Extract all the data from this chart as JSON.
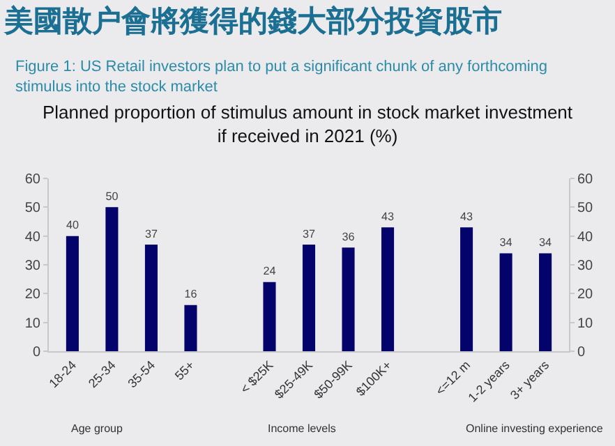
{
  "chart_data": {
    "type": "bar",
    "title": "Planned proportion of stimulus amount in stock market investment\nif received in 2021 (%)",
    "subtitle": "Figure 1: US Retail investors plan to put a significant chunk of any forthcoming stimulus into the stock market",
    "annotations": [
      "美國散户會將獲得的錢大部分投資股市",
      "Age group",
      "Income levels",
      "Online investing experience"
    ],
    "categories": [
      "18-24",
      "25-34",
      "35-54",
      "55+",
      null,
      "< $25K",
      "$25-49K",
      "$50-99K",
      "$100K+",
      null,
      "<=12 m",
      "1-2 years",
      "3+ years"
    ],
    "series": [
      {
        "color": "#03036b",
        "values": [
          40,
          50,
          37,
          16,
          null,
          24,
          37,
          36,
          43,
          null,
          43,
          34,
          34
        ]
      }
    ],
    "ylim": [
      0,
      60
    ],
    "yticks": [
      0,
      10,
      20,
      30,
      40,
      50,
      60
    ],
    "y2lim": [
      0,
      60
    ],
    "y2ticks": [
      0,
      10,
      20,
      30,
      40,
      50,
      60
    ],
    "data_labels": true,
    "grid": false,
    "legend": false
  }
}
